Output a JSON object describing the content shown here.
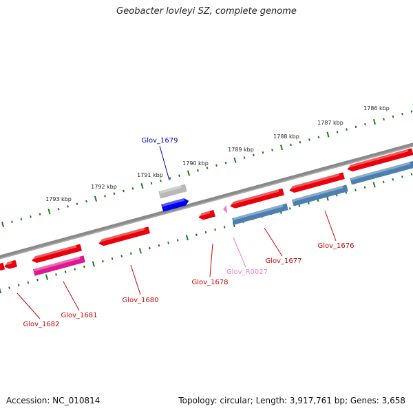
{
  "title": "Geobacter lovleyi SZ, complete genome",
  "footer": {
    "accession": "Accession: NC_010814",
    "topology": "Topology: circular; Length: 3,917,761 bp; Genes: 3,658"
  },
  "colors": {
    "cds": "#e8000b",
    "rna": "#f080c0",
    "pseudo": "#e01890",
    "gene_blue": "#4a7fb0",
    "highlight": "#0000ee",
    "backbone": "#888888",
    "ticks": "#1a7a1a"
  },
  "scale_labels": [
    "1786 kbp",
    "1787 kbp",
    "1788 kbp",
    "1789 kbp",
    "1790 kbp",
    "1791 kbp",
    "1792 kbp",
    "1793 kbp"
  ],
  "gene_labels": [
    {
      "id": "Glov_1679",
      "text": "Glov_1679",
      "color": "#0000cc"
    },
    {
      "id": "Glov_1676",
      "text": "Glov_1676",
      "color": "#cc0000"
    },
    {
      "id": "Glov_1677",
      "text": "Glov_1677",
      "color": "#cc0000"
    },
    {
      "id": "Glov_R0027",
      "text": "Glov_R0027",
      "color": "#f080c0"
    },
    {
      "id": "Glov_1678",
      "text": "Glov_1678",
      "color": "#cc0000"
    },
    {
      "id": "Glov_1680",
      "text": "Glov_1680",
      "color": "#cc0000"
    },
    {
      "id": "Glov_1681",
      "text": "Glov_1681",
      "color": "#cc0000"
    },
    {
      "id": "Glov_1682",
      "text": "Glov_1682",
      "color": "#cc0000"
    }
  ]
}
